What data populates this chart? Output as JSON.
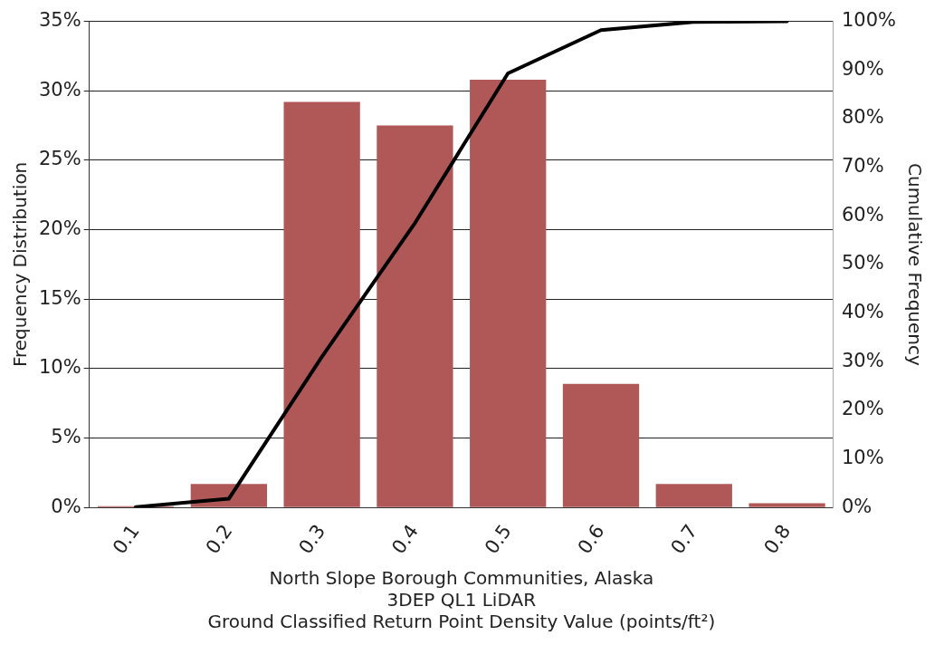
{
  "chart_data": {
    "type": "bar",
    "categories": [
      "0.1",
      "0.2",
      "0.3",
      "0.4",
      "0.5",
      "0.6",
      "0.7",
      "0.8"
    ],
    "xlabel": [
      "North Slope Borough Communities, Alaska",
      "3DEP QL1 LiDAR",
      "Ground Classified Return Point Density Value (points/ft²)"
    ],
    "ylabel": "Frequency Distribution",
    "y2label": "Cumulative Frequency",
    "series": [
      {
        "color": "#b05858",
        "values": [
          0.1,
          1.7,
          29.2,
          27.5,
          30.8,
          8.9,
          1.7,
          0.3
        ]
      },
      {
        "type": "line",
        "axis": "y2",
        "color": "#000000",
        "values": [
          0.1,
          1.8,
          31,
          58.5,
          89.3,
          98.2,
          99.9,
          100
        ]
      }
    ],
    "ylim": [
      0,
      35
    ],
    "yticks": [
      {
        "value": 0,
        "label": "0%"
      },
      {
        "value": 5,
        "label": "5%"
      },
      {
        "value": 10,
        "label": "10%"
      },
      {
        "value": 15,
        "label": "15%"
      },
      {
        "value": 20,
        "label": "20%"
      },
      {
        "value": 25,
        "label": "25%"
      },
      {
        "value": 30,
        "label": "30%"
      },
      {
        "value": 35,
        "label": "35%"
      }
    ],
    "y2lim": [
      0,
      100
    ],
    "y2ticks": [
      {
        "value": 0,
        "label": "0%"
      },
      {
        "value": 10,
        "label": "10%"
      },
      {
        "value": 20,
        "label": "20%"
      },
      {
        "value": 30,
        "label": "30%"
      },
      {
        "value": 40,
        "label": "40%"
      },
      {
        "value": 50,
        "label": "50%"
      },
      {
        "value": 60,
        "label": "60%"
      },
      {
        "value": 70,
        "label": "70%"
      },
      {
        "value": 80,
        "label": "80%"
      },
      {
        "value": 90,
        "label": "90%"
      },
      {
        "value": 100,
        "label": "100%"
      }
    ],
    "grid": "y",
    "legend": false,
    "marker": "none",
    "line_style": "solid"
  }
}
